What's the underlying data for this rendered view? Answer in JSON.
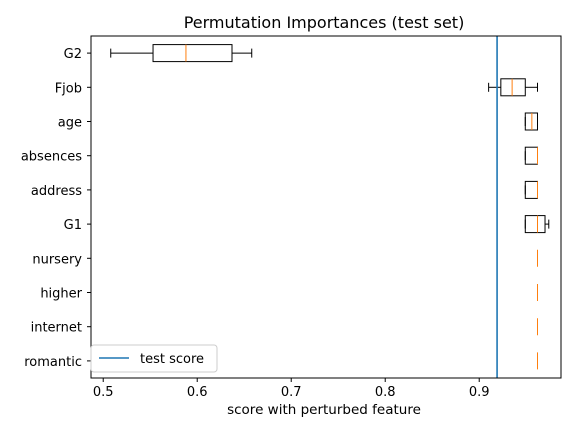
{
  "chart_data": {
    "type": "boxplot",
    "orientation": "horizontal",
    "title": "Permutation Importances (test set)",
    "xlabel": "score with perturbed feature",
    "ylabel": "",
    "xlim": [
      0.487,
      0.987
    ],
    "xticks": [
      0.5,
      0.6,
      0.7,
      0.8,
      0.9
    ],
    "xtick_labels": [
      "0.5",
      "0.6",
      "0.7",
      "0.8",
      "0.9"
    ],
    "grid": false,
    "categories": [
      "G2",
      "Fjob",
      "age",
      "absences",
      "address",
      "G1",
      "nursery",
      "higher",
      "internet",
      "romantic"
    ],
    "boxes": [
      {
        "label": "G2",
        "whislo": 0.508,
        "q1": 0.553,
        "med": 0.588,
        "q3": 0.637,
        "whishi": 0.658
      },
      {
        "label": "Fjob",
        "whislo": 0.91,
        "q1": 0.923,
        "med": 0.935,
        "q3": 0.949,
        "whishi": 0.962
      },
      {
        "label": "age",
        "whislo": 0.949,
        "q1": 0.949,
        "med": 0.956,
        "q3": 0.962,
        "whishi": 0.962
      },
      {
        "label": "absences",
        "whislo": 0.949,
        "q1": 0.949,
        "med": 0.962,
        "q3": 0.962,
        "whishi": 0.962
      },
      {
        "label": "address",
        "whislo": 0.949,
        "q1": 0.949,
        "med": 0.962,
        "q3": 0.962,
        "whishi": 0.962
      },
      {
        "label": "G1",
        "whislo": 0.949,
        "q1": 0.949,
        "med": 0.962,
        "q3": 0.97,
        "whishi": 0.974
      },
      {
        "label": "nursery",
        "whislo": 0.962,
        "q1": 0.962,
        "med": 0.962,
        "q3": 0.962,
        "whishi": 0.962
      },
      {
        "label": "higher",
        "whislo": 0.962,
        "q1": 0.962,
        "med": 0.962,
        "q3": 0.962,
        "whishi": 0.962
      },
      {
        "label": "internet",
        "whislo": 0.962,
        "q1": 0.962,
        "med": 0.962,
        "q3": 0.962,
        "whishi": 0.962
      },
      {
        "label": "romantic",
        "whislo": 0.962,
        "q1": 0.962,
        "med": 0.962,
        "q3": 0.962,
        "whishi": 0.962
      }
    ],
    "reference_line": {
      "label": "test score",
      "x": 0.919,
      "color": "#1f77b4"
    },
    "legend": {
      "position": "lower-left",
      "entries": [
        "test score"
      ]
    },
    "colors": {
      "box": "#000000",
      "median": "#ff7f0e",
      "reference": "#1f77b4"
    }
  }
}
